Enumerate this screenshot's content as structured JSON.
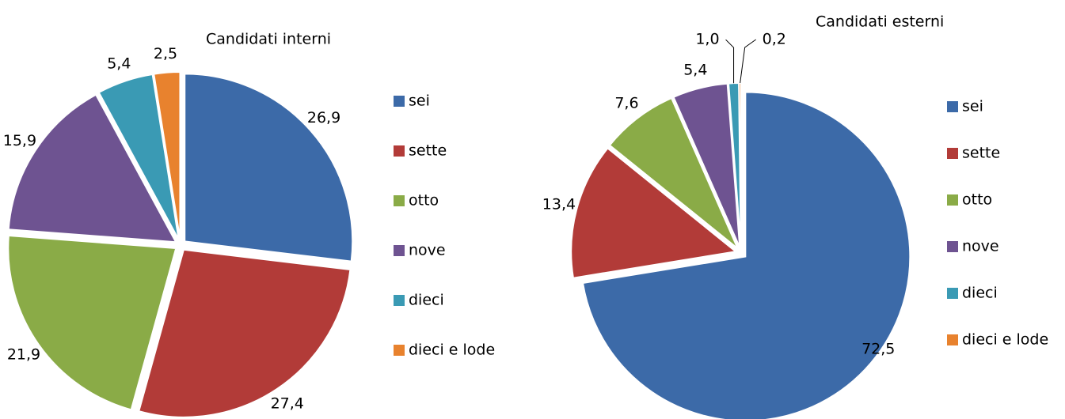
{
  "chart_data": [
    {
      "type": "pie",
      "title": "Candidati interni",
      "categories": [
        "sei",
        "sette",
        "otto",
        "nove",
        "dieci",
        "dieci e lode"
      ],
      "values": [
        26.9,
        27.4,
        21.9,
        15.9,
        5.4,
        2.5
      ],
      "value_labels": [
        "26,9",
        "27,4",
        "21,9",
        "15,9",
        "5,4",
        "2,5"
      ],
      "colors": [
        "#3c6aa8",
        "#b23b38",
        "#8aab47",
        "#6e5391",
        "#3a9ab4",
        "#e8822e"
      ],
      "legend": "right"
    },
    {
      "type": "pie",
      "title": "Candidati esterni",
      "categories": [
        "sei",
        "sette",
        "otto",
        "nove",
        "dieci",
        "dieci e lode"
      ],
      "values": [
        72.5,
        13.4,
        7.6,
        5.4,
        1.0,
        0.2
      ],
      "value_labels": [
        "72,5",
        "13,4",
        "7,6",
        "5,4",
        "1,0",
        "0,2"
      ],
      "colors": [
        "#3c6aa8",
        "#b23b38",
        "#8aab47",
        "#6e5391",
        "#3a9ab4",
        "#e8822e"
      ],
      "legend": "right"
    }
  ]
}
